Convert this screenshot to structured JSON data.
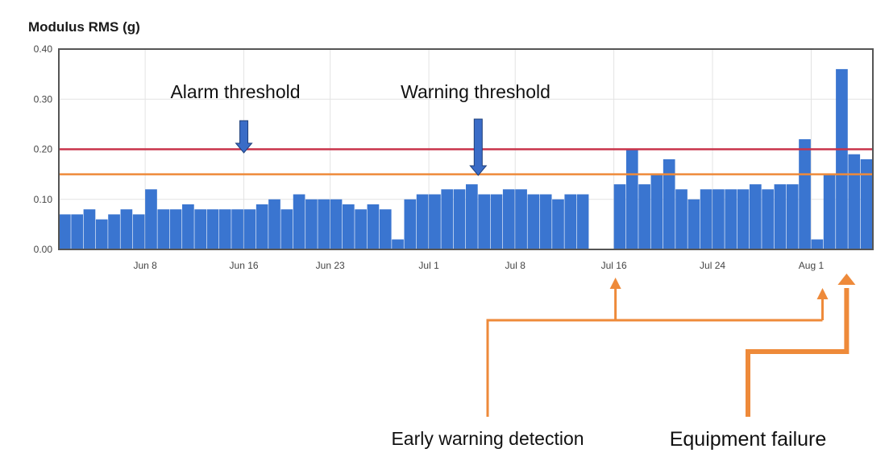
{
  "chart_data": {
    "type": "area",
    "title": "Modulus RMS (g)",
    "xlabel": "",
    "ylabel": "",
    "ylim": [
      0,
      0.4
    ],
    "yticks": [
      "0.00",
      "0.10",
      "0.20",
      "0.30",
      "0.40"
    ],
    "x_range": [
      "2020-06-01",
      "2020-08-06"
    ],
    "xtick_labels": [
      "Jun 8",
      "Jun 16",
      "Jun 23",
      "Jul 1",
      "Jul 8",
      "Jul 16",
      "Jul 24",
      "Aug 1"
    ],
    "xtick_dates": [
      "2020-06-08",
      "2020-06-16",
      "2020-06-23",
      "2020-07-01",
      "2020-07-08",
      "2020-07-16",
      "2020-07-24",
      "2020-08-01"
    ],
    "grid": true,
    "colors": {
      "series": "#3a75d0",
      "alarm": "#c8344a",
      "warning": "#ee8a3a",
      "annotation": "#ee8a3a",
      "threshold_arrow": "#3a6cc7"
    },
    "series": [
      {
        "x": [
          "2020-06-01",
          "2020-06-02",
          "2020-06-03",
          "2020-06-04",
          "2020-06-05",
          "2020-06-06",
          "2020-06-07",
          "2020-06-08",
          "2020-06-09",
          "2020-06-10",
          "2020-06-11",
          "2020-06-12",
          "2020-06-13",
          "2020-06-14",
          "2020-06-15",
          "2020-06-16",
          "2020-06-17",
          "2020-06-18",
          "2020-06-19",
          "2020-06-20",
          "2020-06-21",
          "2020-06-22",
          "2020-06-23",
          "2020-06-24",
          "2020-06-25",
          "2020-06-26",
          "2020-06-27",
          "2020-06-28",
          "2020-06-29",
          "2020-06-30",
          "2020-07-01",
          "2020-07-02",
          "2020-07-03",
          "2020-07-04",
          "2020-07-05",
          "2020-07-06",
          "2020-07-07",
          "2020-07-08",
          "2020-07-09",
          "2020-07-10",
          "2020-07-11",
          "2020-07-12",
          "2020-07-13",
          "2020-07-14",
          "2020-07-15",
          "2020-07-16",
          "2020-07-17",
          "2020-07-18",
          "2020-07-19",
          "2020-07-20",
          "2020-07-21",
          "2020-07-22",
          "2020-07-23",
          "2020-07-24",
          "2020-07-25",
          "2020-07-26",
          "2020-07-27",
          "2020-07-28",
          "2020-07-29",
          "2020-07-30",
          "2020-07-31",
          "2020-08-01",
          "2020-08-02",
          "2020-08-03",
          "2020-08-04",
          "2020-08-05"
        ],
        "values": [
          0.07,
          0.07,
          0.08,
          0.06,
          0.07,
          0.08,
          0.07,
          0.12,
          0.08,
          0.08,
          0.09,
          0.08,
          0.08,
          0.08,
          0.08,
          0.08,
          0.09,
          0.1,
          0.08,
          0.11,
          0.1,
          0.1,
          0.1,
          0.09,
          0.08,
          0.09,
          0.08,
          0.02,
          0.1,
          0.11,
          0.11,
          0.12,
          0.12,
          0.13,
          0.11,
          0.11,
          0.12,
          0.12,
          0.11,
          0.11,
          0.1,
          0.11,
          0.11,
          0.0,
          0.0,
          0.13,
          0.2,
          0.13,
          0.15,
          0.18,
          0.12,
          0.1,
          0.12,
          0.12,
          0.12,
          0.12,
          0.13,
          0.12,
          0.13,
          0.13,
          0.22,
          0.02,
          0.15,
          0.36,
          0.19,
          0.18
        ]
      }
    ],
    "thresholds": [
      {
        "label": "Alarm threshold",
        "value": 0.2
      },
      {
        "label": "Warning threshold",
        "value": 0.15
      }
    ],
    "annotations": [
      {
        "label": "Early warning detection",
        "points": [
          "2020-07-16",
          "2020-08-01"
        ]
      },
      {
        "label": "Equipment failure",
        "points": [
          "2020-08-04"
        ]
      }
    ]
  }
}
